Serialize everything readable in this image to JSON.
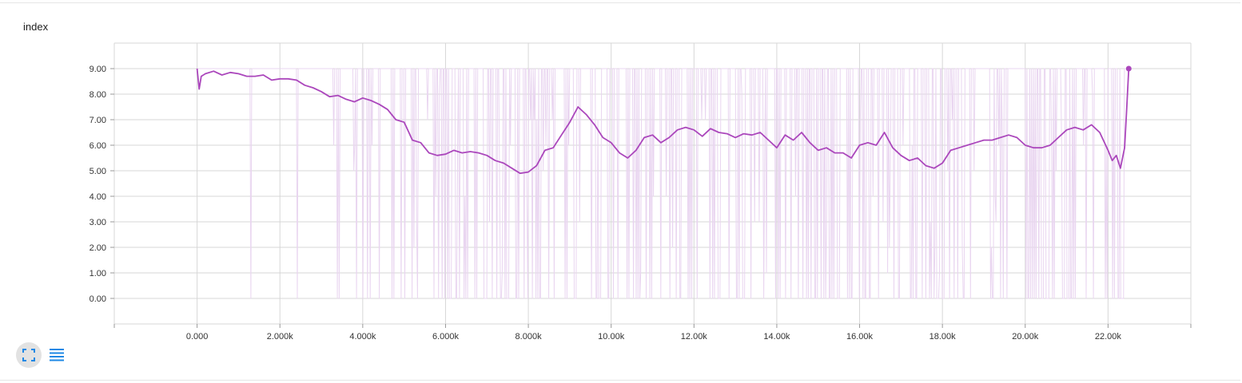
{
  "card": {
    "title": "index"
  },
  "controls": {
    "expand_icon": "fullscreen-icon",
    "data_icon": "list-icon"
  },
  "colors": {
    "smoothed": "#ab47bc",
    "raw": "#e9d5f0",
    "grid": "#d7d7d7",
    "expand_bg": "#e2e2e2",
    "icon_blue": "#1e88e5"
  },
  "chart_data": {
    "type": "line",
    "title": "index",
    "xlabel": "",
    "ylabel": "",
    "xlim": [
      -2000,
      24000
    ],
    "ylim": [
      -1,
      10
    ],
    "x_ticks": [
      0,
      2000,
      4000,
      6000,
      8000,
      10000,
      12000,
      14000,
      16000,
      18000,
      20000,
      22000
    ],
    "x_tick_labels": [
      "0.000",
      "2.000k",
      "4.000k",
      "6.000k",
      "8.000k",
      "10.00k",
      "12.00k",
      "14.00k",
      "16.00k",
      "18.00k",
      "20.00k",
      "22.00k"
    ],
    "y_ticks": [
      0,
      1,
      2,
      3,
      4,
      5,
      6,
      7,
      8,
      9
    ],
    "y_tick_labels": [
      "0.00",
      "1.00",
      "2.00",
      "3.00",
      "4.00",
      "5.00",
      "6.00",
      "7.00",
      "8.00",
      "9.00"
    ],
    "grid": true,
    "series": [
      {
        "role": "smoothed",
        "x": [
          0,
          50,
          100,
          200,
          400,
          600,
          800,
          1000,
          1200,
          1400,
          1600,
          1800,
          2000,
          2200,
          2400,
          2600,
          2800,
          3000,
          3200,
          3400,
          3600,
          3800,
          4000,
          4200,
          4400,
          4600,
          4800,
          5000,
          5200,
          5400,
          5600,
          5800,
          6000,
          6200,
          6400,
          6600,
          6800,
          7000,
          7200,
          7400,
          7600,
          7800,
          8000,
          8200,
          8400,
          8600,
          8800,
          9000,
          9200,
          9400,
          9600,
          9800,
          10000,
          10200,
          10400,
          10600,
          10800,
          11000,
          11200,
          11400,
          11600,
          11800,
          12000,
          12200,
          12400,
          12600,
          12800,
          13000,
          13200,
          13400,
          13600,
          13800,
          14000,
          14200,
          14400,
          14600,
          14800,
          15000,
          15200,
          15400,
          15600,
          15800,
          16000,
          16200,
          16400,
          16600,
          16800,
          17000,
          17200,
          17400,
          17600,
          17800,
          18000,
          18200,
          18400,
          18600,
          18800,
          19000,
          19200,
          19400,
          19600,
          19800,
          20000,
          20200,
          20400,
          20600,
          20800,
          21000,
          21200,
          21400,
          21600,
          21800,
          22000,
          22100,
          22200,
          22300,
          22400,
          22450,
          22500
        ],
        "y": [
          9.0,
          8.2,
          8.7,
          8.8,
          8.9,
          8.75,
          8.85,
          8.8,
          8.7,
          8.7,
          8.75,
          8.55,
          8.6,
          8.6,
          8.55,
          8.35,
          8.25,
          8.1,
          7.9,
          7.95,
          7.8,
          7.7,
          7.85,
          7.75,
          7.6,
          7.4,
          7.0,
          6.9,
          6.2,
          6.1,
          5.7,
          5.6,
          5.65,
          5.8,
          5.7,
          5.75,
          5.7,
          5.6,
          5.4,
          5.3,
          5.1,
          4.9,
          4.95,
          5.2,
          5.8,
          5.9,
          6.4,
          6.9,
          7.5,
          7.2,
          6.8,
          6.3,
          6.1,
          5.7,
          5.5,
          5.8,
          6.3,
          6.4,
          6.1,
          6.3,
          6.6,
          6.7,
          6.6,
          6.35,
          6.65,
          6.5,
          6.45,
          6.3,
          6.45,
          6.4,
          6.5,
          6.2,
          5.9,
          6.4,
          6.2,
          6.5,
          6.1,
          5.8,
          5.9,
          5.7,
          5.7,
          5.5,
          6.0,
          6.1,
          6.0,
          6.5,
          5.9,
          5.6,
          5.4,
          5.5,
          5.2,
          5.1,
          5.3,
          5.8,
          5.9,
          6.0,
          6.1,
          6.2,
          6.2,
          6.3,
          6.4,
          6.3,
          6.0,
          5.9,
          5.9,
          6.0,
          6.3,
          6.6,
          6.7,
          6.6,
          6.8,
          6.5,
          5.8,
          5.4,
          5.6,
          5.1,
          5.9,
          7.4,
          9.0
        ]
      },
      {
        "role": "raw",
        "note_values": [
          0,
          9
        ]
      }
    ]
  }
}
